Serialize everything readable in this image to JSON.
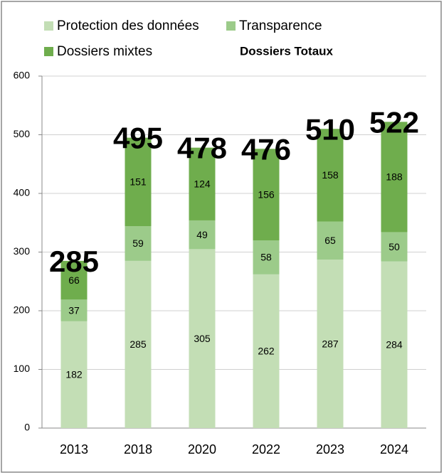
{
  "chart_data": {
    "type": "stacked-bar",
    "categories": [
      "2013",
      "2018",
      "2020",
      "2022",
      "2023",
      "2024"
    ],
    "series": [
      {
        "name": "Protection des données",
        "color": "#c3deb5",
        "values": [
          182,
          285,
          305,
          262,
          287,
          284
        ]
      },
      {
        "name": "Transparence",
        "color": "#9ccb8a",
        "values": [
          37,
          59,
          49,
          58,
          65,
          50
        ]
      },
      {
        "name": "Dossiers mixtes",
        "color": "#6fad4d",
        "values": [
          66,
          151,
          124,
          156,
          158,
          188
        ]
      }
    ],
    "totals": {
      "name": "Dossiers Totaux",
      "values": [
        285,
        495,
        478,
        476,
        510,
        522
      ]
    },
    "ylim": [
      0,
      600
    ],
    "yticks": [
      0,
      100,
      200,
      300,
      400,
      500,
      600
    ],
    "grid": true
  }
}
